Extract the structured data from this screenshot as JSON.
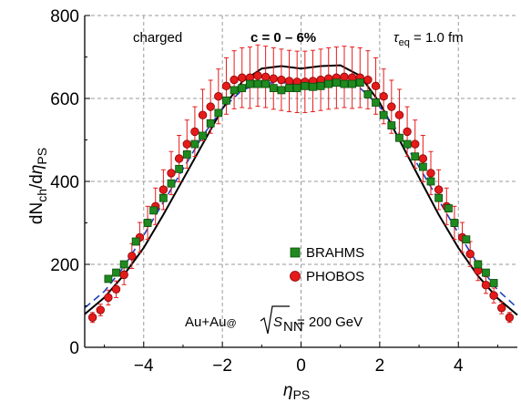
{
  "chart_data": {
    "type": "scatter",
    "xlabel_main": "η",
    "xlabel_sub": "PS",
    "ylabel": {
      "d1": "dN",
      "sub1": "ch",
      "slash": "/d",
      "eta": "η",
      "sub2": "PS"
    },
    "xlim": [
      -5.5,
      5.5
    ],
    "ylim": [
      0,
      800
    ],
    "xticks": [
      -4,
      -2,
      0,
      2,
      4
    ],
    "xtick_labels": [
      "−4",
      "−2",
      "0",
      "2",
      "4"
    ],
    "yticks": [
      0,
      200,
      400,
      600,
      800
    ],
    "grid": true,
    "annotations": {
      "charged": "charged",
      "centrality": "c = 0 – 6%",
      "tau_symbol": "τ",
      "tau_sub": "eq",
      "tau_value": " = 1.0 fm",
      "system_prefix": "Au+Au",
      "system_at": "@",
      "system_s": "S",
      "system_sub": "NN",
      "system_energy": " = 200 GeV"
    },
    "legend_position": "center",
    "series": [
      {
        "name": "BRAHMS",
        "color": "#1f8a1f",
        "marker": "square",
        "points": [
          [
            -4.9,
            165
          ],
          [
            -4.7,
            180
          ],
          [
            -4.5,
            200
          ],
          [
            -4.2,
            255
          ],
          [
            -3.9,
            300
          ],
          [
            -3.75,
            330
          ],
          [
            -3.5,
            360
          ],
          [
            -3.3,
            395
          ],
          [
            -3.1,
            430
          ],
          [
            -2.9,
            465
          ],
          [
            -2.7,
            490
          ],
          [
            -2.5,
            510
          ],
          [
            -2.3,
            540
          ],
          [
            -2.1,
            565
          ],
          [
            -1.9,
            595
          ],
          [
            -1.7,
            620
          ],
          [
            -1.5,
            625
          ],
          [
            -1.3,
            635
          ],
          [
            -1.1,
            635
          ],
          [
            -0.9,
            635
          ],
          [
            -0.7,
            625
          ],
          [
            -0.5,
            620
          ],
          [
            -0.3,
            625
          ],
          [
            -0.1,
            625
          ],
          [
            0.1,
            630
          ],
          [
            0.3,
            628
          ],
          [
            0.5,
            630
          ],
          [
            0.7,
            635
          ],
          [
            0.9,
            638
          ],
          [
            1.1,
            635
          ],
          [
            1.3,
            635
          ],
          [
            1.5,
            638
          ],
          [
            1.7,
            610
          ],
          [
            1.9,
            590
          ],
          [
            2.1,
            560
          ],
          [
            2.3,
            535
          ],
          [
            2.5,
            505
          ],
          [
            2.7,
            490
          ],
          [
            2.9,
            460
          ],
          [
            3.1,
            435
          ],
          [
            3.3,
            400
          ],
          [
            3.5,
            360
          ],
          [
            3.75,
            335
          ],
          [
            3.9,
            300
          ],
          [
            4.2,
            260
          ],
          [
            4.5,
            200
          ],
          [
            4.7,
            180
          ],
          [
            4.9,
            155
          ]
        ]
      },
      {
        "name": "PHOBOS",
        "color": "#e51b1b",
        "marker": "circle",
        "points": [
          [
            -5.3,
            72,
            12
          ],
          [
            -5.1,
            90,
            14
          ],
          [
            -4.9,
            120,
            18
          ],
          [
            -4.7,
            140,
            20
          ],
          [
            -4.5,
            175,
            24
          ],
          [
            -4.3,
            220,
            30
          ],
          [
            -4.1,
            265,
            36
          ],
          [
            -3.9,
            300,
            40
          ],
          [
            -3.7,
            340,
            44
          ],
          [
            -3.5,
            380,
            48
          ],
          [
            -3.3,
            420,
            52
          ],
          [
            -3.1,
            455,
            56
          ],
          [
            -2.9,
            490,
            58
          ],
          [
            -2.7,
            520,
            60
          ],
          [
            -2.5,
            560,
            62
          ],
          [
            -2.3,
            580,
            64
          ],
          [
            -2.1,
            605,
            66
          ],
          [
            -1.9,
            630,
            68
          ],
          [
            -1.7,
            645,
            70
          ],
          [
            -1.5,
            650,
            72
          ],
          [
            -1.3,
            650,
            74
          ],
          [
            -1.1,
            655,
            74
          ],
          [
            -0.9,
            652,
            74
          ],
          [
            -0.7,
            648,
            74
          ],
          [
            -0.5,
            645,
            74
          ],
          [
            -0.3,
            642,
            74
          ],
          [
            -0.1,
            640,
            74
          ],
          [
            0.1,
            640,
            74
          ],
          [
            0.3,
            642,
            74
          ],
          [
            0.5,
            645,
            74
          ],
          [
            0.7,
            648,
            74
          ],
          [
            0.9,
            650,
            74
          ],
          [
            1.1,
            652,
            74
          ],
          [
            1.3,
            650,
            74
          ],
          [
            1.5,
            650,
            72
          ],
          [
            1.7,
            645,
            70
          ],
          [
            1.9,
            630,
            68
          ],
          [
            2.1,
            605,
            66
          ],
          [
            2.3,
            580,
            64
          ],
          [
            2.5,
            560,
            62
          ],
          [
            2.7,
            520,
            60
          ],
          [
            2.9,
            490,
            58
          ],
          [
            3.1,
            455,
            56
          ],
          [
            3.3,
            420,
            52
          ],
          [
            3.5,
            380,
            48
          ],
          [
            3.7,
            340,
            44
          ],
          [
            3.9,
            300,
            40
          ],
          [
            4.1,
            265,
            36
          ],
          [
            4.3,
            225,
            30
          ],
          [
            4.5,
            185,
            24
          ],
          [
            4.7,
            150,
            20
          ],
          [
            4.9,
            125,
            18
          ],
          [
            5.1,
            95,
            14
          ],
          [
            5.3,
            72,
            12
          ]
        ]
      },
      {
        "color": "#000000",
        "marker": "line",
        "style": "solid",
        "points": [
          [
            -5.5,
            80
          ],
          [
            -5.0,
            120
          ],
          [
            -4.5,
            175
          ],
          [
            -4.0,
            240
          ],
          [
            -3.5,
            320
          ],
          [
            -3.0,
            405
          ],
          [
            -2.5,
            490
          ],
          [
            -2.0,
            575
          ],
          [
            -1.5,
            640
          ],
          [
            -1.0,
            672
          ],
          [
            -0.5,
            678
          ],
          [
            0.0,
            672
          ],
          [
            0.5,
            678
          ],
          [
            1.0,
            680
          ],
          [
            1.5,
            655
          ],
          [
            2.0,
            590
          ],
          [
            2.5,
            500
          ],
          [
            3.0,
            410
          ],
          [
            3.5,
            320
          ],
          [
            4.0,
            240
          ],
          [
            4.5,
            172
          ],
          [
            5.0,
            118
          ],
          [
            5.5,
            78
          ]
        ]
      },
      {
        "color": "#1f3fbf",
        "marker": "line",
        "style": "dashed",
        "points": [
          [
            -5.5,
            95
          ],
          [
            -5.0,
            135
          ],
          [
            -4.5,
            195
          ],
          [
            -4.0,
            270
          ],
          [
            -3.5,
            350
          ],
          [
            -3.0,
            430
          ],
          [
            -2.5,
            510
          ],
          [
            -2.0,
            575
          ],
          [
            -1.5,
            620
          ],
          [
            -1.0,
            637
          ],
          [
            -0.5,
            638
          ],
          [
            0.0,
            635
          ],
          [
            0.5,
            638
          ],
          [
            1.0,
            642
          ],
          [
            1.5,
            625
          ],
          [
            2.0,
            580
          ],
          [
            2.5,
            515
          ],
          [
            3.0,
            435
          ],
          [
            3.5,
            355
          ],
          [
            4.0,
            275
          ],
          [
            4.5,
            200
          ],
          [
            5.0,
            138
          ],
          [
            5.5,
            95
          ]
        ]
      }
    ]
  }
}
